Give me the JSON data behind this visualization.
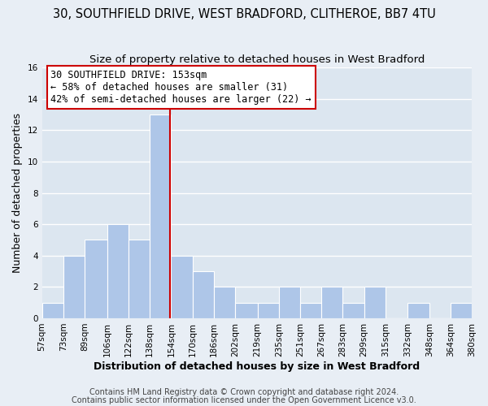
{
  "title_line1": "30, SOUTHFIELD DRIVE, WEST BRADFORD, CLITHEROE, BB7 4TU",
  "title_line2": "Size of property relative to detached houses in West Bradford",
  "xlabel": "Distribution of detached houses by size in West Bradford",
  "ylabel": "Number of detached properties",
  "bins": [
    57,
    73,
    89,
    106,
    122,
    138,
    154,
    170,
    186,
    202,
    219,
    235,
    251,
    267,
    283,
    299,
    315,
    332,
    348,
    364,
    380
  ],
  "counts": [
    1,
    4,
    5,
    6,
    5,
    13,
    4,
    3,
    2,
    1,
    1,
    2,
    1,
    2,
    1,
    2,
    0,
    1,
    0,
    1
  ],
  "bar_color": "#aec6e8",
  "bar_edge_color": "#ffffff",
  "reference_line_x": 153,
  "reference_line_color": "#cc0000",
  "ylim": [
    0,
    16
  ],
  "yticks": [
    0,
    2,
    4,
    6,
    8,
    10,
    12,
    14,
    16
  ],
  "tick_labels": [
    "57sqm",
    "73sqm",
    "89sqm",
    "106sqm",
    "122sqm",
    "138sqm",
    "154sqm",
    "170sqm",
    "186sqm",
    "202sqm",
    "219sqm",
    "235sqm",
    "251sqm",
    "267sqm",
    "283sqm",
    "299sqm",
    "315sqm",
    "332sqm",
    "348sqm",
    "364sqm",
    "380sqm"
  ],
  "annotation_title": "30 SOUTHFIELD DRIVE: 153sqm",
  "annotation_line1": "← 58% of detached houses are smaller (31)",
  "annotation_line2": "42% of semi-detached houses are larger (22) →",
  "annotation_box_color": "#ffffff",
  "annotation_box_edge_color": "#cc0000",
  "footer_line1": "Contains HM Land Registry data © Crown copyright and database right 2024.",
  "footer_line2": "Contains public sector information licensed under the Open Government Licence v3.0.",
  "background_color": "#e8eef5",
  "plot_background_color": "#dce6f0",
  "grid_color": "#ffffff",
  "title_fontsize": 10.5,
  "subtitle_fontsize": 9.5,
  "axis_label_fontsize": 9,
  "tick_fontsize": 7.5,
  "annotation_fontsize": 8.5,
  "footer_fontsize": 7
}
